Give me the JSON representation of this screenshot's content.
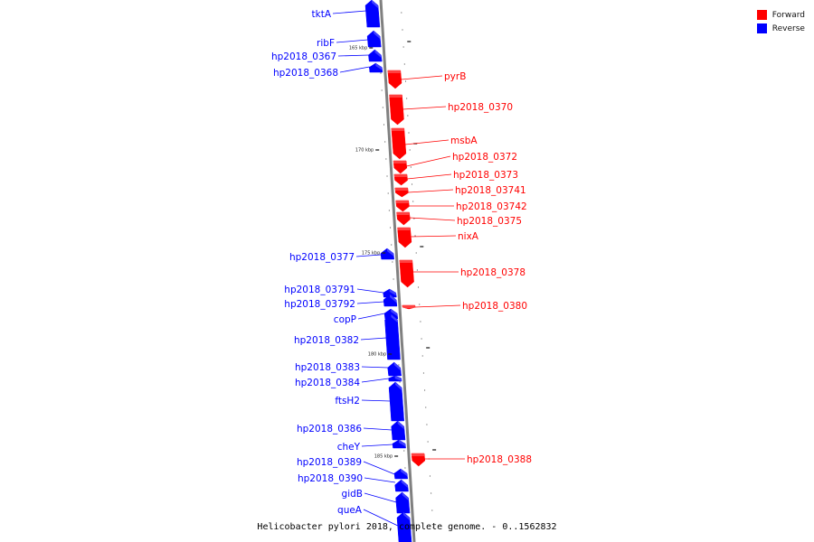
{
  "caption": "Helicobacter pylori 2018, complete genome. - 0..1562832",
  "legend": [
    {
      "label": "Forward",
      "color": "#ff0000"
    },
    {
      "label": "Reverse",
      "color": "#0000ff"
    }
  ],
  "colors": {
    "forward": "#ff0000",
    "reverse": "#0000ff",
    "backbone": "#808080"
  },
  "scale_labels": [
    "165 kbp",
    "170 kbp",
    "175 kbp",
    "180 kbp",
    "185 kbp"
  ],
  "genes": [
    {
      "name": "tktA",
      "strand": "reverse"
    },
    {
      "name": "ribF",
      "strand": "reverse"
    },
    {
      "name": "hp2018_0367",
      "strand": "reverse"
    },
    {
      "name": "hp2018_0368",
      "strand": "reverse"
    },
    {
      "name": "pyrB",
      "strand": "forward"
    },
    {
      "name": "hp2018_0370",
      "strand": "forward"
    },
    {
      "name": "msbA",
      "strand": "forward"
    },
    {
      "name": "hp2018_0372",
      "strand": "forward"
    },
    {
      "name": "hp2018_0373",
      "strand": "forward"
    },
    {
      "name": "hp2018_03741",
      "strand": "forward"
    },
    {
      "name": "hp2018_03742",
      "strand": "forward"
    },
    {
      "name": "hp2018_0375",
      "strand": "forward"
    },
    {
      "name": "nixA",
      "strand": "forward"
    },
    {
      "name": "hp2018_0377",
      "strand": "reverse"
    },
    {
      "name": "hp2018_0378",
      "strand": "forward"
    },
    {
      "name": "hp2018_03791",
      "strand": "reverse"
    },
    {
      "name": "hp2018_03792",
      "strand": "reverse"
    },
    {
      "name": "copP",
      "strand": "reverse"
    },
    {
      "name": "hp2018_0380",
      "strand": "forward"
    },
    {
      "name": "hp2018_0382",
      "strand": "reverse"
    },
    {
      "name": "hp2018_0383",
      "strand": "reverse"
    },
    {
      "name": "hp2018_0384",
      "strand": "reverse"
    },
    {
      "name": "ftsH2",
      "strand": "reverse"
    },
    {
      "name": "hp2018_0386",
      "strand": "reverse"
    },
    {
      "name": "cheY",
      "strand": "reverse"
    },
    {
      "name": "hp2018_0388",
      "strand": "forward"
    },
    {
      "name": "hp2018_0389",
      "strand": "reverse"
    },
    {
      "name": "hp2018_0390",
      "strand": "reverse"
    },
    {
      "name": "gidB",
      "strand": "reverse"
    },
    {
      "name": "queA",
      "strand": "reverse"
    }
  ]
}
